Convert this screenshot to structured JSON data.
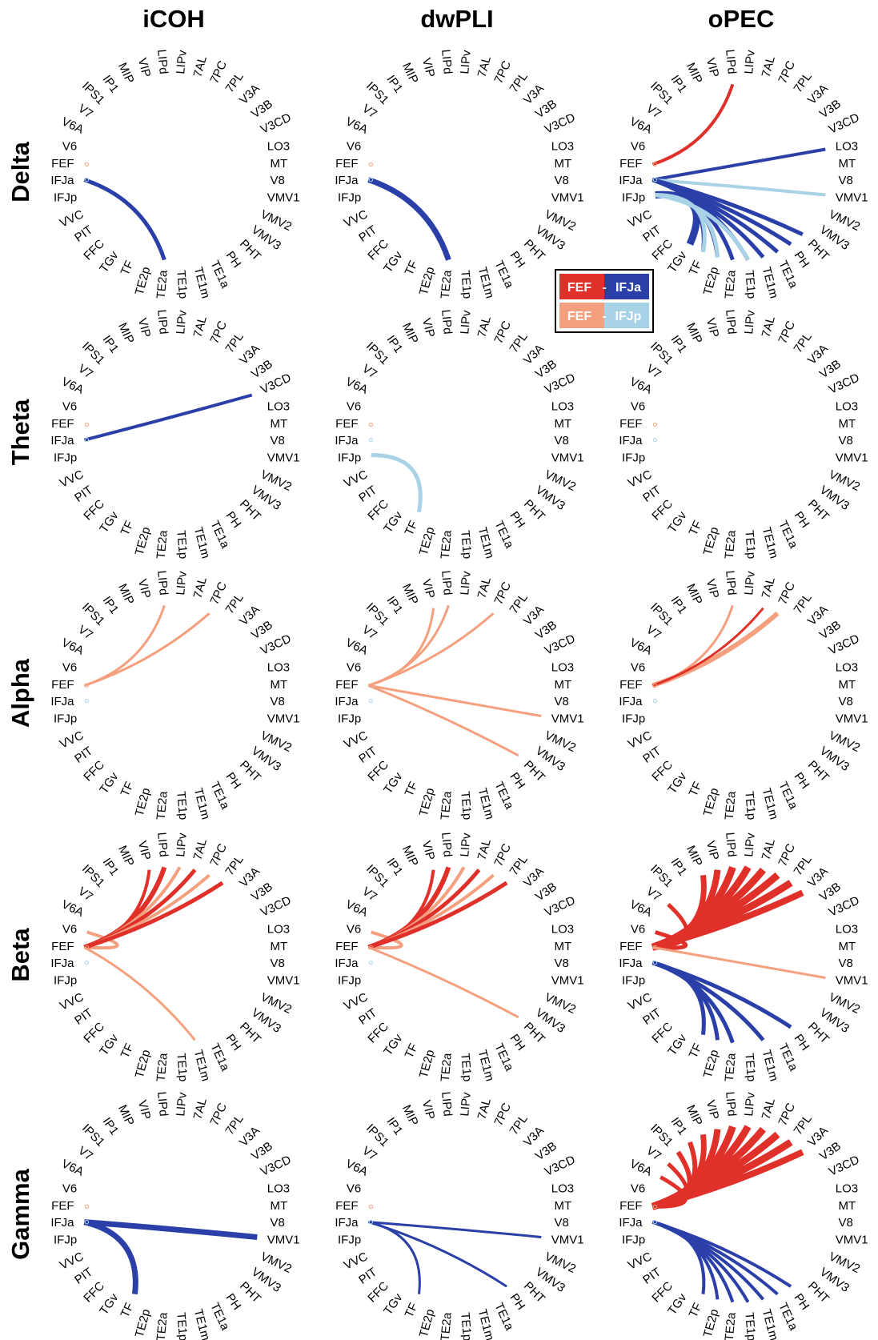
{
  "columns": [
    "iCOH",
    "dwPLI",
    "oPEC"
  ],
  "rows": [
    "Delta",
    "Theta",
    "Alpha",
    "Beta",
    "Gamma"
  ],
  "nodes": [
    "LIPv",
    "7AL",
    "7PC",
    "7PL",
    "V3A",
    "V3B",
    "V3CD",
    "LO3",
    "MT",
    "V8",
    "VMV1",
    "VMV2",
    "VMV3",
    "PHT",
    "PH",
    "TE1a",
    "TE1m",
    "TE1p",
    "TE2a",
    "TE2p",
    "TF",
    "TGv",
    "FFC",
    "PIT",
    "VVC",
    "IFJp",
    "IFJa",
    "FEF",
    "V6",
    "V6A",
    "V7",
    "IPS1",
    "IP1",
    "MIP",
    "VIP",
    "LIPd"
  ],
  "colors": {
    "fef_ifja_pos": "#e0302a",
    "fef_ifja_neg": "#2a3fa8",
    "fef_ifjp_pos": "#f4a07f",
    "fef_ifjp_neg": "#a8d2e6",
    "fef_marker": "#f4a07f",
    "ifja_marker": "#a8d2e6"
  },
  "legend": {
    "row1": {
      "left": "FEF",
      "sep": "-",
      "right": "IFJa"
    },
    "row2": {
      "left": "FEF",
      "sep": "-",
      "right": "IFJp"
    }
  },
  "panels": [
    {
      "row": "Delta",
      "col": "iCOH",
      "links": [
        {
          "s": "IFJa",
          "t": "TE2a",
          "c": "fef_ifja_neg",
          "w": 5
        }
      ]
    },
    {
      "row": "Delta",
      "col": "dwPLI",
      "links": [
        {
          "s": "IFJa",
          "t": "TE2a",
          "c": "fef_ifja_neg",
          "w": 7
        }
      ]
    },
    {
      "row": "Delta",
      "col": "oPEC",
      "links": [
        {
          "s": "FEF",
          "t": "LIPd",
          "c": "fef_ifja_pos",
          "w": 4
        },
        {
          "s": "IFJa",
          "t": "LO3",
          "c": "fef_ifja_neg",
          "w": 4
        },
        {
          "s": "IFJa",
          "t": "VMV1",
          "c": "fef_ifjp_neg",
          "w": 4
        },
        {
          "s": "IFJa",
          "t": "PHT",
          "c": "fef_ifja_neg",
          "w": 5
        },
        {
          "s": "IFJa",
          "t": "PH",
          "c": "fef_ifja_neg",
          "w": 5
        },
        {
          "s": "IFJa",
          "t": "TE1a",
          "c": "fef_ifja_neg",
          "w": 5
        },
        {
          "s": "IFJa",
          "t": "TE1m",
          "c": "fef_ifja_neg",
          "w": 5
        },
        {
          "s": "IFJa",
          "t": "TE1p",
          "c": "fef_ifja_neg",
          "w": 5
        },
        {
          "s": "IFJa",
          "t": "TE2a",
          "c": "fef_ifja_neg",
          "w": 5
        },
        {
          "s": "IFJa",
          "t": "TE2p",
          "c": "fef_ifja_neg",
          "w": 5
        },
        {
          "s": "IFJa",
          "t": "TF",
          "c": "fef_ifja_neg",
          "w": 5
        },
        {
          "s": "IFJp",
          "t": "TGv",
          "c": "fef_ifja_neg",
          "w": 9
        },
        {
          "s": "IFJp",
          "t": "TE1p",
          "c": "fef_ifjp_neg",
          "w": 5
        },
        {
          "s": "IFJp",
          "t": "TE2p",
          "c": "fef_ifjp_neg",
          "w": 5
        },
        {
          "s": "IFJp",
          "t": "TF",
          "c": "fef_ifjp_neg",
          "w": 5
        }
      ]
    },
    {
      "row": "Theta",
      "col": "iCOH",
      "links": [
        {
          "s": "IFJa",
          "t": "V3CD",
          "c": "fef_ifja_neg",
          "w": 4
        }
      ]
    },
    {
      "row": "Theta",
      "col": "dwPLI",
      "links": [
        {
          "s": "IFJp",
          "t": "TF",
          "c": "fef_ifjp_neg",
          "w": 5
        }
      ]
    },
    {
      "row": "Theta",
      "col": "oPEC",
      "links": []
    },
    {
      "row": "Alpha",
      "col": "iCOH",
      "links": [
        {
          "s": "FEF",
          "t": "LIPd",
          "c": "fef_ifjp_pos",
          "w": 3
        },
        {
          "s": "FEF",
          "t": "7PC",
          "c": "fef_ifjp_pos",
          "w": 3
        }
      ]
    },
    {
      "row": "Alpha",
      "col": "dwPLI",
      "links": [
        {
          "s": "FEF",
          "t": "VIP",
          "c": "fef_ifjp_pos",
          "w": 3
        },
        {
          "s": "FEF",
          "t": "LIPd",
          "c": "fef_ifjp_pos",
          "w": 3
        },
        {
          "s": "FEF",
          "t": "7PC",
          "c": "fef_ifjp_pos",
          "w": 3
        },
        {
          "s": "FEF",
          "t": "VMV1",
          "c": "fef_ifjp_pos",
          "w": 3
        },
        {
          "s": "FEF",
          "t": "PHT",
          "c": "fef_ifjp_pos",
          "w": 3
        }
      ]
    },
    {
      "row": "Alpha",
      "col": "oPEC",
      "links": [
        {
          "s": "FEF",
          "t": "LIPd",
          "c": "fef_ifjp_pos",
          "w": 3
        },
        {
          "s": "FEF",
          "t": "7PC",
          "c": "fef_ifjp_pos",
          "w": 6
        },
        {
          "s": "FEF",
          "t": "7AL",
          "c": "fef_ifja_pos",
          "w": 3
        }
      ]
    },
    {
      "row": "Beta",
      "col": "iCOH",
      "links": [
        {
          "s": "FEF",
          "t": "V6",
          "c": "fef_ifjp_pos",
          "w": 4
        },
        {
          "s": "FEF",
          "t": "VIP",
          "c": "fef_ifja_pos",
          "w": 4
        },
        {
          "s": "FEF",
          "t": "LIPd",
          "c": "fef_ifja_pos",
          "w": 6
        },
        {
          "s": "FEF",
          "t": "LIPv",
          "c": "fef_ifjp_pos",
          "w": 4
        },
        {
          "s": "FEF",
          "t": "7AL",
          "c": "fef_ifja_pos",
          "w": 5
        },
        {
          "s": "FEF",
          "t": "7PC",
          "c": "fef_ifjp_pos",
          "w": 4
        },
        {
          "s": "FEF",
          "t": "7PL",
          "c": "fef_ifja_pos",
          "w": 5
        },
        {
          "s": "FEF",
          "t": "TE1m",
          "c": "fef_ifjp_pos",
          "w": 3
        }
      ]
    },
    {
      "row": "Beta",
      "col": "dwPLI",
      "links": [
        {
          "s": "FEF",
          "t": "V6",
          "c": "fef_ifjp_pos",
          "w": 4
        },
        {
          "s": "FEF",
          "t": "VIP",
          "c": "fef_ifja_pos",
          "w": 4
        },
        {
          "s": "FEF",
          "t": "LIPd",
          "c": "fef_ifja_pos",
          "w": 6
        },
        {
          "s": "FEF",
          "t": "LIPv",
          "c": "fef_ifjp_pos",
          "w": 4
        },
        {
          "s": "FEF",
          "t": "7AL",
          "c": "fef_ifja_pos",
          "w": 5
        },
        {
          "s": "FEF",
          "t": "7PC",
          "c": "fef_ifjp_pos",
          "w": 4
        },
        {
          "s": "FEF",
          "t": "7PL",
          "c": "fef_ifja_pos",
          "w": 5
        },
        {
          "s": "FEF",
          "t": "PHT",
          "c": "fef_ifjp_pos",
          "w": 3
        }
      ]
    },
    {
      "row": "Beta",
      "col": "oPEC",
      "links": [
        {
          "s": "FEF",
          "t": "V7",
          "c": "fef_ifja_pos",
          "w": 5
        },
        {
          "s": "FEF",
          "t": "V6",
          "c": "fef_ifja_pos",
          "w": 5
        },
        {
          "s": "FEF",
          "t": "MIP",
          "c": "fef_ifja_pos",
          "w": 7
        },
        {
          "s": "FEF",
          "t": "VIP",
          "c": "fef_ifja_pos",
          "w": 8
        },
        {
          "s": "FEF",
          "t": "LIPd",
          "c": "fef_ifja_pos",
          "w": 9
        },
        {
          "s": "FEF",
          "t": "LIPv",
          "c": "fef_ifja_pos",
          "w": 9
        },
        {
          "s": "FEF",
          "t": "7AL",
          "c": "fef_ifja_pos",
          "w": 9
        },
        {
          "s": "FEF",
          "t": "7PC",
          "c": "fef_ifja_pos",
          "w": 9
        },
        {
          "s": "FEF",
          "t": "7PL",
          "c": "fef_ifja_pos",
          "w": 9
        },
        {
          "s": "FEF",
          "t": "V3A",
          "c": "fef_ifja_pos",
          "w": 8
        },
        {
          "s": "FEF",
          "t": "VMV1",
          "c": "fef_ifjp_pos",
          "w": 3
        },
        {
          "s": "IFJa",
          "t": "TF",
          "c": "fef_ifja_neg",
          "w": 5
        },
        {
          "s": "IFJa",
          "t": "TE2p",
          "c": "fef_ifja_neg",
          "w": 5
        },
        {
          "s": "IFJa",
          "t": "TE2a",
          "c": "fef_ifja_neg",
          "w": 5
        },
        {
          "s": "IFJa",
          "t": "TE1m",
          "c": "fef_ifja_neg",
          "w": 5
        },
        {
          "s": "IFJa",
          "t": "PH",
          "c": "fef_ifja_neg",
          "w": 5
        }
      ]
    },
    {
      "row": "Gamma",
      "col": "iCOH",
      "links": [
        {
          "s": "IFJa",
          "t": "VMV1",
          "c": "fef_ifja_neg",
          "w": 7
        },
        {
          "s": "IFJa",
          "t": "TF",
          "c": "fef_ifja_neg",
          "w": 7
        }
      ]
    },
    {
      "row": "Gamma",
      "col": "dwPLI",
      "links": [
        {
          "s": "IFJa",
          "t": "VMV1",
          "c": "fef_ifja_neg",
          "w": 3
        },
        {
          "s": "IFJa",
          "t": "PH",
          "c": "fef_ifja_neg",
          "w": 3
        },
        {
          "s": "IFJa",
          "t": "TF",
          "c": "fef_ifja_neg",
          "w": 3
        }
      ]
    },
    {
      "row": "Gamma",
      "col": "oPEC",
      "links": [
        {
          "s": "FEF",
          "t": "V7",
          "c": "fef_ifja_pos",
          "w": 5
        },
        {
          "s": "FEF",
          "t": "V6A",
          "c": "fef_ifja_pos",
          "w": 5
        },
        {
          "s": "FEF",
          "t": "IPS1",
          "c": "fef_ifja_pos",
          "w": 6
        },
        {
          "s": "FEF",
          "t": "IP1",
          "c": "fef_ifja_pos",
          "w": 6
        },
        {
          "s": "FEF",
          "t": "MIP",
          "c": "fef_ifja_pos",
          "w": 7
        },
        {
          "s": "FEF",
          "t": "VIP",
          "c": "fef_ifja_pos",
          "w": 8
        },
        {
          "s": "FEF",
          "t": "LIPd",
          "c": "fef_ifja_pos",
          "w": 9
        },
        {
          "s": "FEF",
          "t": "LIPv",
          "c": "fef_ifja_pos",
          "w": 9
        },
        {
          "s": "FEF",
          "t": "7AL",
          "c": "fef_ifja_pos",
          "w": 9
        },
        {
          "s": "FEF",
          "t": "7PC",
          "c": "fef_ifja_pos",
          "w": 9
        },
        {
          "s": "FEF",
          "t": "7PL",
          "c": "fef_ifja_pos",
          "w": 9
        },
        {
          "s": "FEF",
          "t": "V3A",
          "c": "fef_ifja_pos",
          "w": 8
        },
        {
          "s": "IFJa",
          "t": "TF",
          "c": "fef_ifja_neg",
          "w": 4
        },
        {
          "s": "IFJa",
          "t": "TE2p",
          "c": "fef_ifja_neg",
          "w": 4
        },
        {
          "s": "IFJa",
          "t": "TE2a",
          "c": "fef_ifja_neg",
          "w": 4
        },
        {
          "s": "IFJa",
          "t": "TE1p",
          "c": "fef_ifja_neg",
          "w": 4
        },
        {
          "s": "IFJa",
          "t": "TE1m",
          "c": "fef_ifja_neg",
          "w": 4
        },
        {
          "s": "IFJa",
          "t": "TE1a",
          "c": "fef_ifja_neg",
          "w": 4
        },
        {
          "s": "IFJa",
          "t": "PH",
          "c": "fef_ifja_neg",
          "w": 4
        }
      ]
    }
  ]
}
